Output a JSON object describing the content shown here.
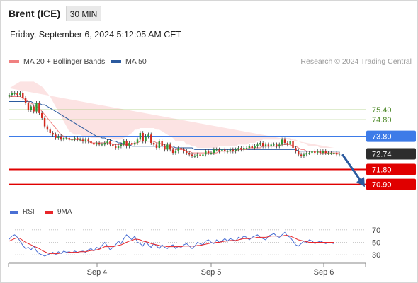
{
  "header": {
    "instrument": "Brent (ICE)",
    "timeframe": "30 MIN"
  },
  "datetime": "Friday, September 6, 2024 5:12:05 AM CET",
  "legend": {
    "ma20": {
      "label": "MA 20 + Bollinger Bands",
      "color": "#f08080"
    },
    "ma50": {
      "label": "MA 50",
      "color": "#2b5a9e"
    }
  },
  "credit": "Research © 2024 Trading Central",
  "rsi_legend": {
    "rsi": {
      "label": "RSI",
      "color": "#4a6fd4"
    },
    "ma9": {
      "label": "9MA",
      "color": "#e8262a"
    }
  },
  "chart_data": {
    "type": "candlestick",
    "x_labels": [
      "Sep 4",
      "Sep 5",
      "Sep 6"
    ],
    "ylim": [
      69.9,
      77.5
    ],
    "levels": [
      {
        "value": 75.4,
        "label": "75.40",
        "kind": "resistance-minor",
        "color": "#a8cc7a"
      },
      {
        "value": 74.8,
        "label": "74.80",
        "kind": "resistance-minor",
        "color": "#a8cc7a"
      },
      {
        "value": 73.8,
        "label": "73.80",
        "kind": "pivot",
        "color": "#3d7be8"
      },
      {
        "value": 72.74,
        "label": "72.74",
        "kind": "last-price",
        "color": "#333333"
      },
      {
        "value": 71.8,
        "label": "71.80",
        "kind": "support",
        "color": "#e00000"
      },
      {
        "value": 70.9,
        "label": "70.90",
        "kind": "support",
        "color": "#e00000"
      }
    ],
    "forecast_arrow": {
      "from": 72.74,
      "to": 71.0,
      "color": "#2b5a9e"
    },
    "close_series": [
      76.3,
      76.4,
      76.4,
      76.3,
      76.4,
      76.1,
      75.8,
      75.4,
      75.6,
      75.3,
      75.8,
      75.2,
      74.9,
      74.4,
      74.2,
      74.0,
      73.9,
      73.7,
      73.8,
      73.6,
      73.7,
      73.7,
      73.6,
      73.6,
      73.7,
      73.6,
      73.6,
      73.5,
      73.6,
      73.5,
      73.4,
      73.3,
      73.4,
      73.3,
      73.3,
      73.4,
      73.5,
      73.3,
      73.2,
      73.1,
      73.2,
      73.3,
      73.5,
      73.2,
      73.4,
      73.3,
      73.4,
      73.6,
      74.0,
      73.5,
      73.8,
      73.9,
      73.4,
      73.3,
      73.1,
      73.5,
      73.2,
      73.0,
      73.3,
      73.0,
      72.8,
      72.9,
      73.1,
      73.0,
      72.9,
      72.8,
      72.7,
      72.6,
      72.6,
      72.7,
      72.6,
      72.7,
      72.9,
      72.8,
      72.8,
      73.0,
      73.0,
      72.9,
      73.0,
      72.9,
      72.9,
      73.0,
      72.9,
      73.0,
      73.1,
      73.0,
      73.1,
      73.1,
      73.2,
      73.1,
      73.2,
      73.3,
      73.4,
      73.2,
      73.3,
      73.2,
      73.3,
      73.3,
      73.2,
      73.3,
      73.6,
      73.4,
      73.3,
      73.5,
      73.1,
      72.9,
      72.7,
      72.6,
      72.7,
      72.8,
      72.8,
      72.9,
      72.8,
      72.9,
      72.8,
      72.9,
      72.8,
      72.8,
      72.8,
      72.8,
      72.7,
      72.74
    ],
    "ma20_series": [
      76.2,
      76.2,
      76.2,
      76.2,
      76.2,
      76.1,
      76.0,
      75.9,
      75.8,
      75.7,
      75.6,
      75.5,
      75.3,
      75.1,
      74.9,
      74.7,
      74.5,
      74.3,
      74.1,
      73.9,
      73.8,
      73.7,
      73.6,
      73.6,
      73.6,
      73.6,
      73.6,
      73.5,
      73.5,
      73.5,
      73.4,
      73.4,
      73.4,
      73.4,
      73.4,
      73.4,
      73.4,
      73.4,
      73.3,
      73.3,
      73.3,
      73.3,
      73.3,
      73.3,
      73.3,
      73.3,
      73.4,
      73.4,
      73.5,
      73.5,
      73.5,
      73.5,
      73.5,
      73.5,
      73.4,
      73.4,
      73.3,
      73.3,
      73.2,
      73.2,
      73.1,
      73.0,
      73.0,
      73.0,
      73.0,
      72.9,
      72.9,
      72.8,
      72.8,
      72.8,
      72.8,
      72.8,
      72.8,
      72.8,
      72.8,
      72.8,
      72.8,
      72.9,
      72.9,
      72.9,
      72.9,
      72.9,
      72.9,
      72.9,
      73.0,
      73.0,
      73.0,
      73.0,
      73.1,
      73.1,
      73.1,
      73.1,
      73.1,
      73.2,
      73.2,
      73.2,
      73.2,
      73.2,
      73.2,
      73.2,
      73.3,
      73.3,
      73.3,
      73.3,
      73.2,
      73.2,
      73.1,
      73.0,
      73.0,
      72.9,
      72.9,
      72.9,
      72.9,
      72.9,
      72.8,
      72.8,
      72.8,
      72.8,
      72.8,
      72.8,
      72.8,
      72.8
    ],
    "ma50_series": [
      75.9,
      75.9,
      75.9,
      75.9,
      75.9,
      75.9,
      75.9,
      75.9,
      75.9,
      75.8,
      75.8,
      75.8,
      75.7,
      75.7,
      75.6,
      75.5,
      75.4,
      75.3,
      75.2,
      75.1,
      75.0,
      74.9,
      74.8,
      74.7,
      74.6,
      74.5,
      74.4,
      74.3,
      74.2,
      74.1,
      74.0,
      73.9,
      73.8,
      73.8,
      73.7,
      73.7,
      73.6,
      73.6,
      73.5,
      73.5,
      73.4,
      73.4,
      73.3,
      73.3,
      73.3,
      73.2,
      73.2,
      73.2,
      73.2,
      73.2,
      73.2,
      73.2,
      73.2,
      73.2,
      73.2,
      73.2,
      73.2,
      73.2,
      73.2,
      73.2,
      73.2,
      73.1,
      73.1,
      73.1,
      73.1,
      73.1,
      73.1,
      73.1,
      73.0,
      73.0,
      73.0,
      73.0,
      73.0,
      73.0,
      73.0,
      73.0,
      73.0,
      73.0,
      73.0,
      73.0,
      73.0,
      73.0,
      73.0,
      73.0,
      73.0,
      73.0,
      73.0,
      73.0,
      73.0,
      73.0,
      73.0,
      73.0,
      73.0,
      73.0,
      73.0,
      73.0,
      73.0,
      73.0,
      73.0,
      73.0,
      73.0,
      73.0,
      73.0,
      73.0,
      73.0,
      73.0,
      72.9,
      72.9,
      72.9,
      72.9,
      72.9,
      72.9,
      72.9,
      72.9,
      72.9,
      72.9,
      72.9,
      72.9,
      72.9,
      72.9,
      72.9,
      72.9
    ],
    "bb_width_series": [
      0.5,
      0.6,
      0.7,
      0.8,
      0.9,
      1.0,
      1.1,
      1.2,
      1.3,
      1.4,
      1.4,
      1.4,
      1.5,
      1.5,
      1.5,
      1.5,
      1.4,
      1.3,
      1.2,
      1.1,
      0.9,
      0.7,
      0.5,
      0.4,
      0.3,
      0.3,
      0.3,
      0.3,
      0.3,
      0.3,
      0.3,
      0.3,
      0.3,
      0.3,
      0.3,
      0.3,
      0.3,
      0.3,
      0.3,
      0.3,
      0.3,
      0.3,
      0.4,
      0.5,
      0.6,
      0.7,
      0.8,
      0.8,
      0.8,
      0.8,
      0.8,
      0.8,
      0.8,
      0.8,
      0.8,
      0.8,
      0.8,
      0.7,
      0.7,
      0.6,
      0.6,
      0.5,
      0.5,
      0.5,
      0.5,
      0.4,
      0.4,
      0.4,
      0.4,
      0.3,
      0.3,
      0.3,
      0.3,
      0.3,
      0.3,
      0.3,
      0.3,
      0.3,
      0.3,
      0.3,
      0.3,
      0.3,
      0.3,
      0.3,
      0.3,
      0.3,
      0.3,
      0.3,
      0.3,
      0.3,
      0.3,
      0.4,
      0.4,
      0.4,
      0.4,
      0.4,
      0.4,
      0.4,
      0.4,
      0.4,
      0.4,
      0.4,
      0.4,
      0.4,
      0.4,
      0.4,
      0.4,
      0.4,
      0.4,
      0.4,
      0.3,
      0.3,
      0.3,
      0.3,
      0.3,
      0.3,
      0.3,
      0.3,
      0.3,
      0.3
    ],
    "rsi": {
      "ticks": [
        70,
        50,
        30
      ],
      "ylim": [
        20,
        80
      ],
      "rsi_series": [
        55,
        60,
        62,
        58,
        52,
        45,
        40,
        42,
        38,
        44,
        36,
        32,
        30,
        28,
        30,
        32,
        34,
        30,
        35,
        32,
        36,
        34,
        35,
        33,
        36,
        34,
        35,
        36,
        34,
        38,
        40,
        36,
        42,
        40,
        45,
        50,
        44,
        38,
        42,
        46,
        52,
        48,
        56,
        62,
        58,
        54,
        60,
        50,
        48,
        44,
        52,
        46,
        42,
        48,
        44,
        40,
        46,
        42,
        40,
        44,
        46,
        40,
        44,
        42,
        46,
        48,
        44,
        40,
        44,
        50,
        48,
        46,
        52,
        54,
        50,
        48,
        54,
        50,
        52,
        56,
        52,
        56,
        54,
        52,
        58,
        56,
        60,
        58,
        54,
        58,
        60,
        62,
        58,
        56,
        54,
        60,
        62,
        64,
        60,
        58,
        62,
        66,
        60,
        58,
        52,
        46,
        44,
        48,
        52,
        50,
        54,
        52,
        48,
        50,
        52,
        50,
        48,
        50,
        49,
        48
      ],
      "ma9_series": [
        52,
        54,
        56,
        57,
        56,
        53,
        50,
        48,
        46,
        44,
        42,
        40,
        37,
        35,
        33,
        32,
        32,
        32,
        32,
        33,
        33,
        33,
        34,
        34,
        34,
        34,
        35,
        35,
        35,
        36,
        37,
        37,
        38,
        39,
        41,
        43,
        43,
        43,
        43,
        44,
        45,
        46,
        48,
        50,
        52,
        53,
        55,
        55,
        54,
        52,
        51,
        50,
        48,
        47,
        46,
        45,
        44,
        44,
        43,
        43,
        43,
        43,
        43,
        43,
        44,
        44,
        44,
        44,
        44,
        45,
        45,
        46,
        47,
        48,
        49,
        49,
        50,
        50,
        51,
        52,
        52,
        53,
        53,
        53,
        54,
        55,
        56,
        56,
        56,
        57,
        57,
        58,
        58,
        58,
        58,
        59,
        60,
        60,
        60,
        60,
        60,
        61,
        61,
        60,
        58,
        56,
        54,
        53,
        52,
        51,
        50,
        50,
        50,
        50,
        50,
        50,
        50,
        50,
        50,
        50
      ]
    }
  }
}
